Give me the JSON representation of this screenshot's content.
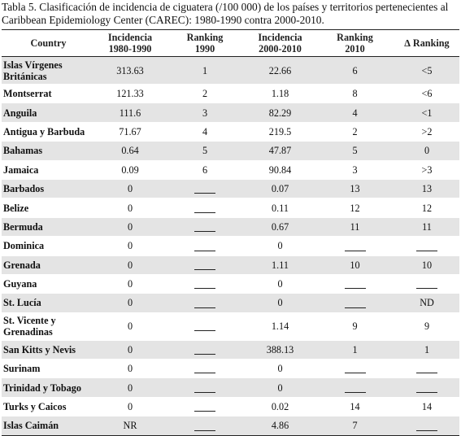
{
  "caption": "Tabla 5. Clasificación de incidencia de ciguatera (/100 000) de los países y territorios pertenecientes al Caribbean Epidemiology Center (CAREC): 1980-1990 contra 2000-2010.",
  "headers": {
    "country": "Country",
    "inc1_l1": "Incidencia",
    "inc1_l2": "1980-1990",
    "rank1_l1": "Ranking",
    "rank1_l2": "1990",
    "inc2_l1": "Incidencia",
    "inc2_l2": "2000-2010",
    "rank2_l1": "Ranking",
    "rank2_l2": "2010",
    "delta": "∆ Ranking"
  },
  "rows": [
    {
      "c": [
        "Islas Vírgenes",
        "Británicas"
      ],
      "i1": "313.63",
      "r1": "1",
      "i2": "22.66",
      "r2": "6",
      "d": "<5"
    },
    {
      "c": [
        "Montserrat"
      ],
      "i1": "121.33",
      "r1": "2",
      "i2": "1.18",
      "r2": "8",
      "d": "<6"
    },
    {
      "c": [
        "Anguila"
      ],
      "i1": "111.6",
      "r1": "3",
      "i2": "82.29",
      "r2": "4",
      "d": "<1"
    },
    {
      "c": [
        "Antigua y Barbuda"
      ],
      "i1": "71.67",
      "r1": "4",
      "i2": "219.5",
      "r2": "2",
      "d": ">2"
    },
    {
      "c": [
        "Bahamas"
      ],
      "i1": "0.64",
      "r1": "5",
      "i2": "47.87",
      "r2": "5",
      "d": "0"
    },
    {
      "c": [
        "Jamaica"
      ],
      "i1": "0.09",
      "r1": "6",
      "i2": "90.84",
      "r2": "3",
      "d": ">3"
    },
    {
      "c": [
        "Barbados"
      ],
      "i1": "0",
      "r1": null,
      "i2": "0.07",
      "r2": "13",
      "d": "13"
    },
    {
      "c": [
        "Belize"
      ],
      "i1": "0",
      "r1": null,
      "i2": "0.11",
      "r2": "12",
      "d": "12"
    },
    {
      "c": [
        "Bermuda"
      ],
      "i1": "0",
      "r1": null,
      "i2": "0.67",
      "r2": "11",
      "d": "11"
    },
    {
      "c": [
        "Dominica"
      ],
      "i1": "0",
      "r1": null,
      "i2": "0",
      "r2": null,
      "d": null
    },
    {
      "c": [
        "Grenada"
      ],
      "i1": "0",
      "r1": null,
      "i2": "1.11",
      "r2": "10",
      "d": "10"
    },
    {
      "c": [
        "Guyana"
      ],
      "i1": "0",
      "r1": null,
      "i2": "0",
      "r2": null,
      "d": null
    },
    {
      "c": [
        "St. Lucía"
      ],
      "i1": "0",
      "r1": null,
      "i2": "0",
      "r2": null,
      "d": "ND"
    },
    {
      "c": [
        "St. Vicente y",
        "Grenadinas"
      ],
      "i1": "0",
      "r1": null,
      "i2": "1.14",
      "r2": "9",
      "d": "9"
    },
    {
      "c": [
        "San Kitts y Nevis"
      ],
      "i1": "0",
      "r1": null,
      "i2": "388.13",
      "r2": "1",
      "d": "1"
    },
    {
      "c": [
        "Surinam"
      ],
      "i1": "0",
      "r1": null,
      "i2": "0",
      "r2": null,
      "d": null
    },
    {
      "c": [
        "Trinidad y Tobago"
      ],
      "i1": "0",
      "r1": null,
      "i2": "0",
      "r2": null,
      "d": null
    },
    {
      "c": [
        "Turks y Caicos"
      ],
      "i1": "0",
      "r1": null,
      "i2": "0.02",
      "r2": "14",
      "d": "14"
    },
    {
      "c": [
        "Islas Caimán"
      ],
      "i1": "NR",
      "r1": null,
      "i2": "4.86",
      "r2": "7",
      "d": null
    }
  ]
}
